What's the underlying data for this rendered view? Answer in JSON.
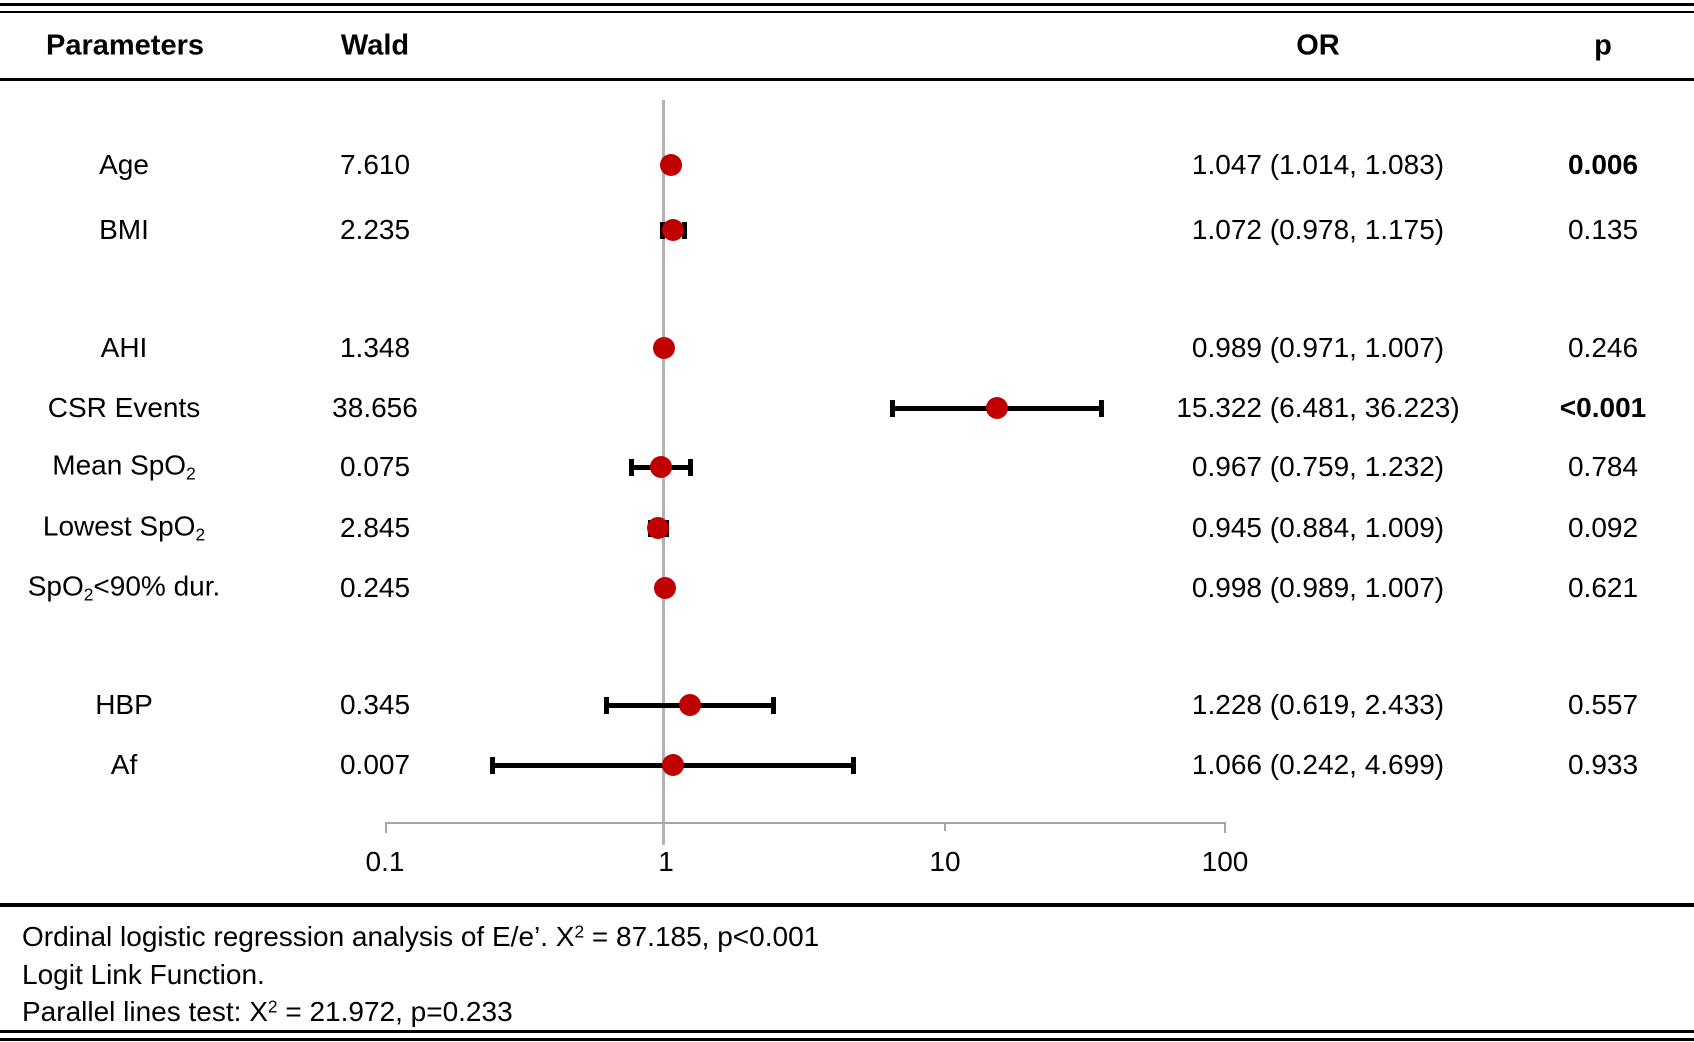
{
  "header": {
    "parameters": "Parameters",
    "wald": "Wald",
    "or": "OR",
    "p": "p"
  },
  "chart_data": {
    "type": "forest",
    "x_axis": {
      "scale": "log10",
      "ticks": [
        "0.1",
        "1",
        "10",
        "100"
      ],
      "tick_values": [
        0.1,
        1,
        10,
        100
      ],
      "range": [
        0.1,
        100
      ],
      "reference_line": 1
    },
    "marker_color": "#c00000",
    "error_bar_color": "#000000",
    "rows": [
      {
        "label": [
          {
            "t": "Age"
          }
        ],
        "wald": "7.610",
        "or": 1.047,
        "ci_low": 1.014,
        "ci_high": 1.083,
        "or_text": "1.047 (1.014, 1.083)",
        "p": "0.006",
        "p_bold": true
      },
      {
        "label": [
          {
            "t": "BMI"
          }
        ],
        "wald": "2.235",
        "or": 1.072,
        "ci_low": 0.978,
        "ci_high": 1.175,
        "or_text": "1.072 (0.978, 1.175)",
        "p": "0.135",
        "p_bold": false
      },
      {
        "label": [
          {
            "t": "AHI"
          }
        ],
        "wald": "1.348",
        "or": 0.989,
        "ci_low": 0.971,
        "ci_high": 1.007,
        "or_text": "0.989 (0.971, 1.007)",
        "p": "0.246",
        "p_bold": false
      },
      {
        "label": [
          {
            "t": "CSR Events"
          }
        ],
        "wald": "38.656",
        "or": 15.322,
        "ci_low": 6.481,
        "ci_high": 36.223,
        "or_text": "15.322 (6.481, 36.223)",
        "p": "<0.001",
        "p_bold": true
      },
      {
        "label": [
          {
            "t": "Mean SpO"
          },
          {
            "t": "2",
            "sub": true
          }
        ],
        "wald": "0.075",
        "or": 0.967,
        "ci_low": 0.759,
        "ci_high": 1.232,
        "or_text": "0.967 (0.759, 1.232)",
        "p": "0.784",
        "p_bold": false
      },
      {
        "label": [
          {
            "t": "Lowest SpO"
          },
          {
            "t": "2",
            "sub": true
          }
        ],
        "wald": "2.845",
        "or": 0.945,
        "ci_low": 0.884,
        "ci_high": 1.009,
        "or_text": "0.945 (0.884, 1.009)",
        "p": "0.092",
        "p_bold": false
      },
      {
        "label": [
          {
            "t": "SpO"
          },
          {
            "t": "2",
            "sub": true
          },
          {
            "t": "<90% dur."
          }
        ],
        "wald": "0.245",
        "or": 0.998,
        "ci_low": 0.989,
        "ci_high": 1.007,
        "or_text": "0.998 (0.989, 1.007)",
        "p": "0.621",
        "p_bold": false
      },
      {
        "label": [
          {
            "t": "HBP"
          }
        ],
        "wald": "0.345",
        "or": 1.228,
        "ci_low": 0.619,
        "ci_high": 2.433,
        "or_text": "1.228 (0.619, 2.433)",
        "p": "0.557",
        "p_bold": false
      },
      {
        "label": [
          {
            "t": "Af"
          }
        ],
        "wald": "0.007",
        "or": 1.066,
        "ci_low": 0.242,
        "ci_high": 4.699,
        "or_text": "1.066 (0.242, 4.699)",
        "p": "0.933",
        "p_bold": false
      }
    ]
  },
  "footnotes": [
    [
      {
        "t": "Ordinal logistic regression analysis of E/e’. X"
      },
      {
        "t": "2",
        "sup": true
      },
      {
        "t": " = 87.185, p<0.001"
      }
    ],
    [
      {
        "t": "Logit Link Function."
      }
    ],
    [
      {
        "t": "Parallel lines test: X"
      },
      {
        "t": "2",
        "sup": true
      },
      {
        "t": " = 21.972, p=0.233"
      }
    ]
  ]
}
